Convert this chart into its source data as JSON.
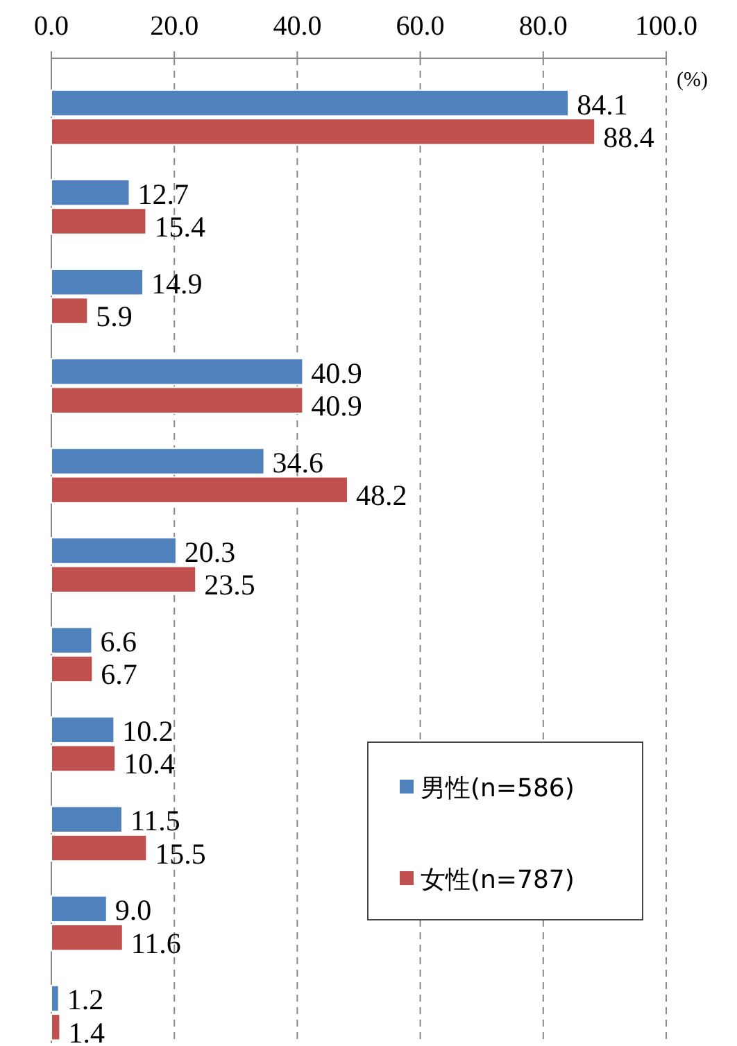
{
  "chart_data": {
    "type": "bar",
    "orientation": "horizontal",
    "categories": [
      null,
      null,
      null,
      null,
      null,
      null,
      null,
      null,
      null,
      null,
      null
    ],
    "series": [
      {
        "name": "男性(n=586)",
        "color": "#4f81bd",
        "values": [
          84.1,
          12.7,
          14.9,
          40.9,
          34.6,
          20.3,
          6.6,
          10.2,
          11.5,
          9.0,
          1.2
        ],
        "value_labels": [
          "84.1",
          "12.7",
          "14.9",
          "40.9",
          "34.6",
          "20.3",
          "6.6",
          "10.2",
          "11.5",
          "9.0",
          "1.2"
        ]
      },
      {
        "name": "女性(n=787)",
        "color": "#c0504d",
        "values": [
          88.4,
          15.4,
          5.9,
          40.9,
          48.2,
          23.5,
          6.7,
          10.4,
          15.5,
          11.6,
          1.4
        ],
        "value_labels": [
          "88.4",
          "15.4",
          "5.9",
          "40.9",
          "48.2",
          "23.5",
          "6.7",
          "10.4",
          "15.5",
          "11.6",
          "1.4"
        ]
      }
    ],
    "xlim": [
      0,
      100
    ],
    "xticks": [
      {
        "value": 0,
        "label": "0.0"
      },
      {
        "value": 20,
        "label": "20.0"
      },
      {
        "value": 40,
        "label": "40.0"
      },
      {
        "value": 60,
        "label": "60.0"
      },
      {
        "value": 80,
        "label": "80.0"
      },
      {
        "value": 100,
        "label": "100.0"
      }
    ],
    "grid": "x",
    "legend": "bottom right",
    "tick_labels": "x",
    "annotations": [
      "(%)"
    ]
  }
}
